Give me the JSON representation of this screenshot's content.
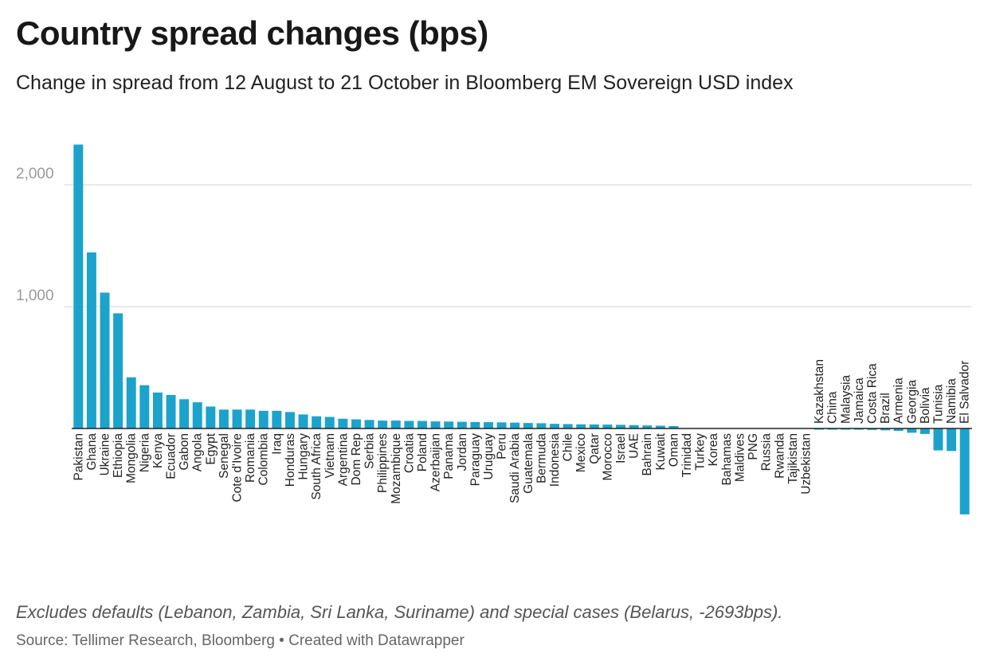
{
  "header": {
    "title": "Country spread changes (bps)",
    "subtitle": "Change in spread from 12 August to 21 October in Bloomberg EM Sovereign USD index"
  },
  "footer": {
    "note": "Excludes defaults (Lebanon, Zambia, Sri Lanka, Suriname) and special cases (Belarus, -2693bps).",
    "source": "Source: Tellimer Research, Bloomberg • Created with Datawrapper"
  },
  "colors": {
    "bar": "#1ba3cc",
    "grid": "#e3e3e3",
    "axis": "#222222"
  },
  "chart_data": {
    "type": "bar",
    "title": "Country spread changes (bps)",
    "xlabel": "",
    "ylabel": "",
    "ylim": [
      -700,
      2350
    ],
    "yticks": [
      1000,
      2000
    ],
    "ytick_labels": [
      "1,000",
      "2,000"
    ],
    "grid": true,
    "categories": [
      "Pakistan",
      "Ghana",
      "Ukraine",
      "Ethiopia",
      "Mongolia",
      "Nigeria",
      "Kenya",
      "Ecuador",
      "Gabon",
      "Angola",
      "Egypt",
      "Senegal",
      "Cote d'Ivoire",
      "Romania",
      "Colombia",
      "Iraq",
      "Honduras",
      "Hungary",
      "South Africa",
      "Vietnam",
      "Argentina",
      "Dom Rep",
      "Serbia",
      "Philippines",
      "Mozambique",
      "Croatia",
      "Poland",
      "Azerbaijan",
      "Panama",
      "Jordan",
      "Paraguay",
      "Uruguay",
      "Peru",
      "Saudi Arabia",
      "Guatemala",
      "Bermuda",
      "Indonesia",
      "Chile",
      "Mexico",
      "Qatar",
      "Morocco",
      "Israel",
      "UAE",
      "Bahrain",
      "Kuwait",
      "Oman",
      "Trinidad",
      "Turkey",
      "Korea",
      "Bahamas",
      "Maldives",
      "PNG",
      "Russia",
      "Rwanda",
      "Tajikistan",
      "Uzbekistan",
      "Kazakhstan",
      "China",
      "Malaysia",
      "Jamaica",
      "Costa Rica",
      "Brazil",
      "Armenia",
      "Georgia",
      "Bolivia",
      "Tunisia",
      "Namibia",
      "El Salvador"
    ],
    "values": [
      2330,
      1445,
      1115,
      945,
      420,
      355,
      295,
      275,
      240,
      215,
      180,
      155,
      155,
      155,
      145,
      145,
      135,
      115,
      100,
      95,
      80,
      75,
      70,
      65,
      65,
      62,
      62,
      58,
      57,
      55,
      53,
      52,
      50,
      48,
      45,
      43,
      38,
      36,
      34,
      33,
      32,
      30,
      28,
      25,
      23,
      20,
      0,
      0,
      0,
      0,
      0,
      0,
      0,
      0,
      0,
      0,
      -2,
      -3,
      -5,
      -10,
      -12,
      -15,
      -20,
      -35,
      -45,
      -180,
      -185,
      -705
    ]
  }
}
